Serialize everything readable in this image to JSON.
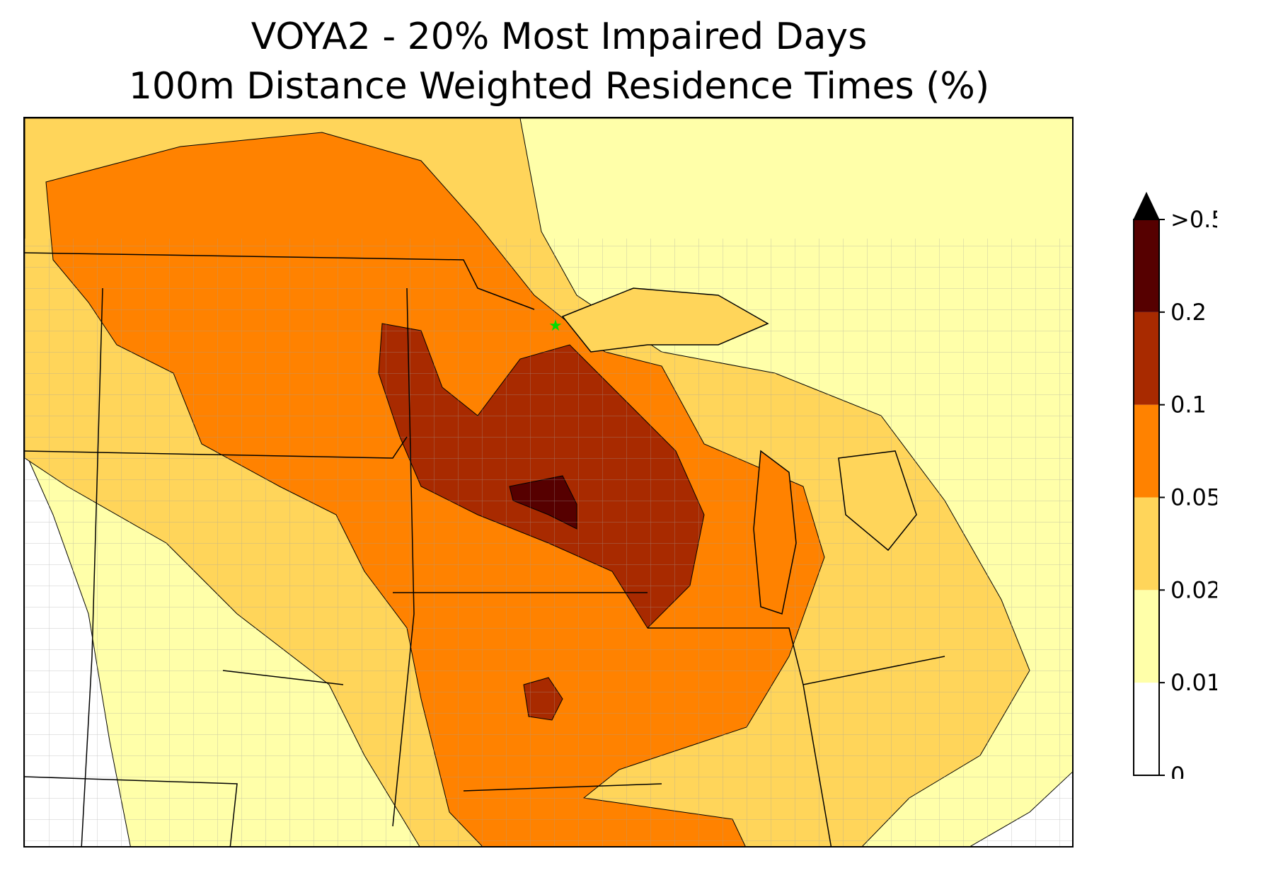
{
  "title": {
    "line1": "VOYA2 - 20% Most Impaired Days",
    "line2": "100m Distance Weighted Residence Times (%)"
  },
  "legend": {
    "levels": [
      {
        "label": "0",
        "color": "#ffffff"
      },
      {
        "label": "0.01",
        "color": "#ffffa9"
      },
      {
        "label": "0.02",
        "color": "#ffd55a"
      },
      {
        "label": "0.05",
        "color": "#ff8200"
      },
      {
        "label": "0.1",
        "color": "#a82a00"
      },
      {
        "label": "0.2",
        "color": "#560000"
      },
      {
        "label": ">0.5",
        "color": "#000000"
      }
    ],
    "extend": "max"
  },
  "map": {
    "receptor_marker": {
      "symbol": "star",
      "color": "#00dd00"
    }
  }
}
